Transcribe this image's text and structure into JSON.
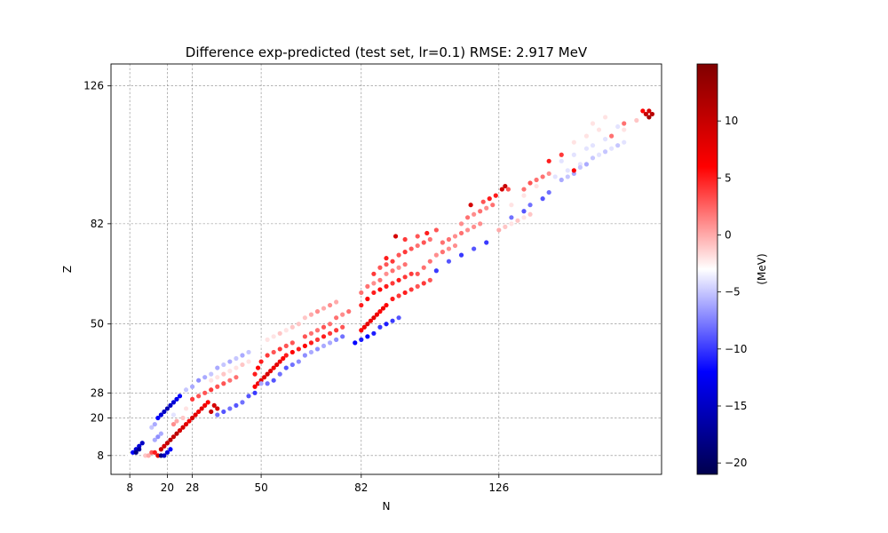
{
  "chart_data": {
    "type": "scatter",
    "title": "Difference exp-predicted (test set, lr=0.1)  RMSE: 2.917 MeV",
    "xlabel": "N",
    "ylabel": "Z",
    "xlim": [
      2,
      178
    ],
    "ylim": [
      2,
      133
    ],
    "xticks": [
      8,
      20,
      28,
      50,
      82,
      126
    ],
    "yticks": [
      8,
      20,
      28,
      50,
      82,
      126
    ],
    "grid": true,
    "colorbar": {
      "label": "(MeV)",
      "cmap": "seismic",
      "range": [
        -21,
        15
      ],
      "ticks": [
        -20,
        -15,
        -10,
        -5,
        0,
        5,
        10
      ],
      "tick_labels": [
        "−20",
        "−15",
        "−10",
        "−5",
        "0",
        "5",
        "10"
      ]
    },
    "points_note": "approximate sample of (N, Z, difference_MeV) values read from the plot",
    "points": [
      [
        8,
        8,
        -3
      ],
      [
        9,
        9,
        -12
      ],
      [
        10,
        10,
        -14
      ],
      [
        11,
        11,
        -14
      ],
      [
        12,
        12,
        -15
      ],
      [
        10,
        9,
        -18
      ],
      [
        11,
        10,
        -17
      ],
      [
        13,
        8,
        -1
      ],
      [
        14,
        8,
        0
      ],
      [
        15,
        9,
        3
      ],
      [
        16,
        9,
        5
      ],
      [
        17,
        8,
        8
      ],
      [
        18,
        10,
        10
      ],
      [
        19,
        11,
        9
      ],
      [
        20,
        12,
        10
      ],
      [
        21,
        13,
        11
      ],
      [
        22,
        14,
        10
      ],
      [
        23,
        15,
        11
      ],
      [
        24,
        16,
        9
      ],
      [
        25,
        17,
        9
      ],
      [
        26,
        18,
        8
      ],
      [
        27,
        19,
        7
      ],
      [
        18,
        8,
        -18
      ],
      [
        19,
        8,
        -15
      ],
      [
        20,
        9,
        -14
      ],
      [
        21,
        10,
        -12
      ],
      [
        16,
        13,
        -6
      ],
      [
        17,
        14,
        -7
      ],
      [
        18,
        15,
        -6
      ],
      [
        15,
        17,
        -5
      ],
      [
        16,
        18,
        -6
      ],
      [
        17,
        20,
        -12
      ],
      [
        18,
        21,
        -14
      ],
      [
        19,
        22,
        -15
      ],
      [
        20,
        23,
        -16
      ],
      [
        21,
        24,
        -15
      ],
      [
        22,
        25,
        -14
      ],
      [
        23,
        26,
        -13
      ],
      [
        24,
        27,
        -12
      ],
      [
        22,
        21,
        -4
      ],
      [
        24,
        22,
        -3
      ],
      [
        26,
        23,
        -2
      ],
      [
        25,
        20,
        -1
      ],
      [
        23,
        19,
        0
      ],
      [
        22,
        18,
        1
      ],
      [
        28,
        20,
        9
      ],
      [
        29,
        21,
        8
      ],
      [
        30,
        22,
        7
      ],
      [
        31,
        23,
        8
      ],
      [
        32,
        24,
        7
      ],
      [
        33,
        25,
        6
      ],
      [
        34,
        22,
        10
      ],
      [
        35,
        24,
        9
      ],
      [
        36,
        23,
        9
      ],
      [
        28,
        26,
        4
      ],
      [
        30,
        27,
        3
      ],
      [
        32,
        28,
        3
      ],
      [
        34,
        29,
        4
      ],
      [
        36,
        30,
        3
      ],
      [
        38,
        31,
        3
      ],
      [
        40,
        32,
        2
      ],
      [
        42,
        33,
        2
      ],
      [
        36,
        21,
        -8
      ],
      [
        38,
        22,
        -9
      ],
      [
        40,
        23,
        -8
      ],
      [
        42,
        24,
        -9
      ],
      [
        44,
        25,
        -8
      ],
      [
        46,
        27,
        -9
      ],
      [
        48,
        28,
        -10
      ],
      [
        26,
        29,
        -5
      ],
      [
        28,
        30,
        -6
      ],
      [
        30,
        32,
        -7
      ],
      [
        32,
        33,
        -6
      ],
      [
        34,
        34,
        -5
      ],
      [
        36,
        36,
        -6
      ],
      [
        38,
        37,
        -5
      ],
      [
        40,
        38,
        -6
      ],
      [
        42,
        39,
        -5
      ],
      [
        44,
        40,
        -6
      ],
      [
        46,
        41,
        -5
      ],
      [
        32,
        31,
        -3
      ],
      [
        34,
        32,
        -2
      ],
      [
        36,
        33,
        -2
      ],
      [
        38,
        34,
        -1
      ],
      [
        40,
        35,
        -2
      ],
      [
        42,
        36,
        -2
      ],
      [
        44,
        37,
        -1
      ],
      [
        46,
        38,
        -2
      ],
      [
        48,
        30,
        6
      ],
      [
        49,
        31,
        7
      ],
      [
        50,
        32,
        8
      ],
      [
        51,
        33,
        8
      ],
      [
        52,
        34,
        9
      ],
      [
        53,
        35,
        8
      ],
      [
        54,
        36,
        7
      ],
      [
        55,
        37,
        8
      ],
      [
        56,
        38,
        7
      ],
      [
        57,
        39,
        6
      ],
      [
        48,
        34,
        5
      ],
      [
        49,
        36,
        6
      ],
      [
        50,
        38,
        5
      ],
      [
        52,
        40,
        4
      ],
      [
        54,
        41,
        3
      ],
      [
        56,
        42,
        4
      ],
      [
        58,
        43,
        3
      ],
      [
        60,
        44,
        3
      ],
      [
        50,
        31,
        -6
      ],
      [
        52,
        31,
        -8
      ],
      [
        54,
        32,
        -9
      ],
      [
        56,
        34,
        -8
      ],
      [
        58,
        36,
        -9
      ],
      [
        60,
        37,
        -8
      ],
      [
        62,
        38,
        -7
      ],
      [
        50,
        44,
        -3
      ],
      [
        52,
        45,
        -2
      ],
      [
        54,
        46,
        -2
      ],
      [
        56,
        47,
        -1
      ],
      [
        58,
        48,
        -2
      ],
      [
        60,
        49,
        -1
      ],
      [
        62,
        50,
        -1
      ],
      [
        58,
        40,
        5
      ],
      [
        60,
        41,
        6
      ],
      [
        62,
        42,
        5
      ],
      [
        64,
        43,
        6
      ],
      [
        66,
        44,
        5
      ],
      [
        68,
        45,
        4
      ],
      [
        70,
        46,
        5
      ],
      [
        72,
        47,
        4
      ],
      [
        74,
        48,
        4
      ],
      [
        76,
        49,
        3
      ],
      [
        64,
        46,
        3
      ],
      [
        66,
        47,
        2
      ],
      [
        68,
        48,
        2
      ],
      [
        70,
        49,
        3
      ],
      [
        72,
        50,
        2
      ],
      [
        74,
        52,
        2
      ],
      [
        76,
        53,
        1
      ],
      [
        78,
        54,
        2
      ],
      [
        64,
        40,
        -7
      ],
      [
        66,
        41,
        -6
      ],
      [
        68,
        42,
        -7
      ],
      [
        70,
        43,
        -6
      ],
      [
        72,
        44,
        -6
      ],
      [
        74,
        45,
        -7
      ],
      [
        76,
        46,
        -8
      ],
      [
        64,
        52,
        -1
      ],
      [
        66,
        53,
        0
      ],
      [
        68,
        54,
        1
      ],
      [
        70,
        55,
        0
      ],
      [
        72,
        56,
        1
      ],
      [
        74,
        57,
        0
      ],
      [
        82,
        48,
        6
      ],
      [
        83,
        49,
        7
      ],
      [
        84,
        50,
        8
      ],
      [
        85,
        51,
        7
      ],
      [
        86,
        52,
        8
      ],
      [
        87,
        53,
        7
      ],
      [
        88,
        54,
        6
      ],
      [
        89,
        55,
        7
      ],
      [
        90,
        56,
        6
      ],
      [
        82,
        56,
        5
      ],
      [
        84,
        58,
        6
      ],
      [
        86,
        60,
        5
      ],
      [
        88,
        61,
        6
      ],
      [
        90,
        62,
        5
      ],
      [
        92,
        63,
        4
      ],
      [
        94,
        64,
        5
      ],
      [
        96,
        65,
        4
      ],
      [
        98,
        66,
        4
      ],
      [
        80,
        44,
        -12
      ],
      [
        82,
        45,
        -11
      ],
      [
        84,
        46,
        -12
      ],
      [
        86,
        47,
        -11
      ],
      [
        88,
        49,
        -10
      ],
      [
        90,
        50,
        -11
      ],
      [
        92,
        51,
        -10
      ],
      [
        94,
        52,
        -9
      ],
      [
        82,
        60,
        2
      ],
      [
        84,
        62,
        2
      ],
      [
        86,
        63,
        1
      ],
      [
        88,
        64,
        2
      ],
      [
        90,
        66,
        1
      ],
      [
        92,
        67,
        2
      ],
      [
        94,
        68,
        1
      ],
      [
        96,
        69,
        2
      ],
      [
        92,
        58,
        5
      ],
      [
        94,
        59,
        4
      ],
      [
        96,
        60,
        5
      ],
      [
        98,
        61,
        4
      ],
      [
        100,
        62,
        3
      ],
      [
        102,
        63,
        4
      ],
      [
        104,
        64,
        3
      ],
      [
        90,
        69,
        3
      ],
      [
        92,
        70,
        4
      ],
      [
        94,
        72,
        3
      ],
      [
        96,
        73,
        4
      ],
      [
        98,
        74,
        3
      ],
      [
        100,
        75,
        2
      ],
      [
        102,
        76,
        3
      ],
      [
        104,
        77,
        2
      ],
      [
        86,
        66,
        4
      ],
      [
        88,
        68,
        3
      ],
      [
        90,
        71,
        5
      ],
      [
        93,
        78,
        9
      ],
      [
        96,
        77,
        4
      ],
      [
        100,
        78,
        3
      ],
      [
        103,
        79,
        5
      ],
      [
        106,
        80,
        3
      ],
      [
        100,
        66,
        3
      ],
      [
        102,
        68,
        2
      ],
      [
        104,
        70,
        2
      ],
      [
        106,
        72,
        1
      ],
      [
        108,
        73,
        2
      ],
      [
        110,
        74,
        1
      ],
      [
        112,
        75,
        1
      ],
      [
        108,
        76,
        2
      ],
      [
        110,
        77,
        2
      ],
      [
        112,
        78,
        1
      ],
      [
        114,
        79,
        2
      ],
      [
        116,
        80,
        1
      ],
      [
        118,
        81,
        1
      ],
      [
        120,
        82,
        1
      ],
      [
        106,
        67,
        -10
      ],
      [
        110,
        70,
        -9
      ],
      [
        114,
        72,
        -10
      ],
      [
        118,
        74,
        -9
      ],
      [
        122,
        76,
        -10
      ],
      [
        114,
        82,
        1
      ],
      [
        116,
        84,
        2
      ],
      [
        118,
        85,
        1
      ],
      [
        120,
        86,
        2
      ],
      [
        122,
        87,
        1
      ],
      [
        124,
        88,
        2
      ],
      [
        117,
        88,
        9
      ],
      [
        121,
        89,
        3
      ],
      [
        123,
        90,
        5
      ],
      [
        125,
        91,
        5
      ],
      [
        127,
        93,
        9
      ],
      [
        128,
        94,
        10
      ],
      [
        129,
        93,
        3
      ],
      [
        126,
        80,
        0
      ],
      [
        128,
        81,
        -1
      ],
      [
        130,
        82,
        -2
      ],
      [
        132,
        83,
        -1
      ],
      [
        134,
        84,
        -2
      ],
      [
        136,
        85,
        -1
      ],
      [
        130,
        84,
        -8
      ],
      [
        134,
        86,
        -9
      ],
      [
        136,
        88,
        -8
      ],
      [
        140,
        90,
        -9
      ],
      [
        142,
        92,
        -8
      ],
      [
        130,
        88,
        -2
      ],
      [
        132,
        90,
        -3
      ],
      [
        134,
        91,
        -2
      ],
      [
        136,
        92,
        -3
      ],
      [
        138,
        94,
        -2
      ],
      [
        140,
        95,
        -3
      ],
      [
        142,
        96,
        -3
      ],
      [
        144,
        97,
        -4
      ],
      [
        146,
        98,
        -3
      ],
      [
        148,
        99,
        -4
      ],
      [
        150,
        100,
        -3
      ],
      [
        152,
        101,
        -4
      ],
      [
        134,
        93,
        2
      ],
      [
        136,
        95,
        3
      ],
      [
        138,
        96,
        2
      ],
      [
        140,
        97,
        2
      ],
      [
        142,
        98,
        1
      ],
      [
        144,
        100,
        -3
      ],
      [
        146,
        102,
        -4
      ],
      [
        148,
        103,
        -3
      ],
      [
        150,
        104,
        -4
      ],
      [
        152,
        105,
        -3
      ],
      [
        154,
        106,
        -4
      ],
      [
        156,
        107,
        -4
      ],
      [
        158,
        108,
        -3
      ],
      [
        160,
        109,
        -4
      ],
      [
        162,
        110,
        -3
      ],
      [
        164,
        111,
        -3
      ],
      [
        166,
        112,
        -2
      ],
      [
        150,
        108,
        -2
      ],
      [
        152,
        109,
        -3
      ],
      [
        154,
        110,
        -2
      ],
      [
        156,
        111,
        -3
      ],
      [
        158,
        112,
        -2
      ],
      [
        160,
        113,
        -3
      ],
      [
        146,
        96,
        -6
      ],
      [
        148,
        97,
        -5
      ],
      [
        150,
        98,
        -6
      ],
      [
        152,
        100,
        -5
      ],
      [
        154,
        101,
        -6
      ],
      [
        156,
        103,
        -5
      ],
      [
        158,
        104,
        -4
      ],
      [
        160,
        105,
        -5
      ],
      [
        162,
        106,
        -4
      ],
      [
        164,
        107,
        -5
      ],
      [
        166,
        108,
        -4
      ],
      [
        142,
        102,
        5
      ],
      [
        146,
        104,
        4
      ],
      [
        156,
        114,
        -2
      ],
      [
        160,
        116,
        -2
      ],
      [
        164,
        113,
        -4
      ],
      [
        150,
        99,
        6
      ],
      [
        162,
        110,
        2
      ],
      [
        166,
        114,
        2
      ],
      [
        172,
        118,
        6
      ],
      [
        173,
        117,
        10
      ],
      [
        174,
        116,
        12
      ],
      [
        175,
        117,
        11
      ],
      [
        174,
        118,
        9
      ],
      [
        170,
        115,
        -1
      ]
    ]
  }
}
